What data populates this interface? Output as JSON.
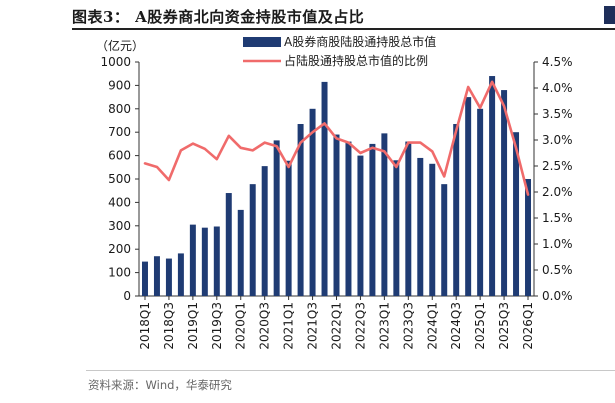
{
  "figure": {
    "title": "图表3： A股券商北向资金持股市值及占比",
    "source": "资料来源：Wind，华泰研究"
  },
  "chart_data": {
    "type": "bar",
    "title": "A股券商北向资金持股市值及占比",
    "y_unit_label": "（亿元）",
    "ylim": [
      0,
      1000
    ],
    "yticks": [
      0,
      100,
      200,
      300,
      400,
      500,
      600,
      700,
      800,
      900,
      1000
    ],
    "y2lim": [
      0,
      4.5
    ],
    "y2ticks": [
      "0.0%",
      "0.5%",
      "1.0%",
      "1.5%",
      "2.0%",
      "2.5%",
      "3.0%",
      "3.5%",
      "4.0%",
      "4.5%"
    ],
    "x_tick_labels": [
      "2018Q1",
      "2018Q3",
      "2019Q1",
      "2019Q3",
      "2020Q1",
      "2020Q3",
      "2021Q1",
      "2021Q3",
      "2022Q1",
      "2022Q3",
      "2023Q1",
      "2023Q3",
      "2024Q1",
      "2024Q3",
      "2025Q1",
      "2025Q3",
      "2026Q1"
    ],
    "legend_position": "top",
    "series": [
      {
        "name": "A股券商股陆股通持股总市值",
        "type": "bar",
        "axis": "left",
        "color": "#1f3b73",
        "values": [
          147,
          170,
          160,
          182,
          305,
          292,
          297,
          440,
          368,
          478,
          555,
          665,
          578,
          735,
          800,
          915,
          690,
          660,
          600,
          650,
          695,
          580,
          660,
          590,
          565,
          478,
          735,
          850,
          800,
          940,
          880,
          700,
          500
        ]
      },
      {
        "name": "占陆股通持股总市值的比例",
        "type": "line",
        "axis": "right",
        "unit": "%",
        "color": "#f06b6b",
        "values": [
          2.55,
          2.48,
          2.23,
          2.8,
          2.93,
          2.83,
          2.63,
          3.08,
          2.85,
          2.8,
          2.95,
          2.88,
          2.48,
          2.95,
          3.15,
          3.32,
          3.03,
          2.95,
          2.75,
          2.85,
          2.78,
          2.48,
          2.95,
          2.95,
          2.78,
          2.3,
          3.18,
          4.02,
          3.62,
          4.12,
          3.65,
          2.85,
          1.95
        ]
      }
    ]
  }
}
